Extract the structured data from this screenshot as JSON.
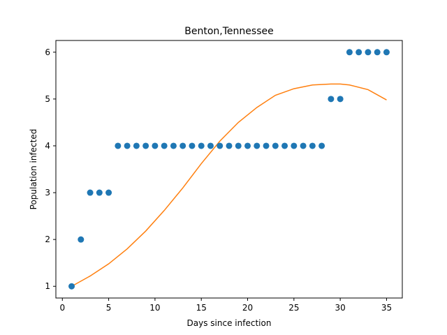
{
  "chart_data": {
    "type": "scatter",
    "title": "Benton,Tennessee",
    "xlabel": "Days since infection",
    "ylabel": "Population infected",
    "xlim": [
      -0.7,
      36.7
    ],
    "ylim": [
      0.75,
      6.25
    ],
    "xticks": [
      0,
      5,
      10,
      15,
      20,
      25,
      30,
      35
    ],
    "yticks": [
      1,
      2,
      3,
      4,
      5,
      6
    ],
    "grid": false,
    "series": [
      {
        "kind": "scatter",
        "color": "#1f77b4",
        "x": [
          1,
          2,
          3,
          4,
          5,
          6,
          7,
          8,
          9,
          10,
          11,
          12,
          13,
          14,
          15,
          16,
          17,
          18,
          19,
          20,
          21,
          22,
          23,
          24,
          25,
          26,
          27,
          28,
          29,
          30,
          31,
          32,
          33,
          34,
          35
        ],
        "y": [
          1,
          2,
          3,
          3,
          3,
          4,
          4,
          4,
          4,
          4,
          4,
          4,
          4,
          4,
          4,
          4,
          4,
          4,
          4,
          4,
          4,
          4,
          4,
          4,
          4,
          4,
          4,
          4,
          5,
          5,
          6,
          6,
          6,
          6,
          6
        ]
      },
      {
        "kind": "line",
        "color": "#ff7f0e",
        "x": [
          1,
          3,
          5,
          7,
          9,
          11,
          13,
          15,
          17,
          19,
          21,
          23,
          25,
          27,
          29,
          30,
          31,
          33,
          35
        ],
        "y": [
          1.0,
          1.22,
          1.48,
          1.8,
          2.18,
          2.62,
          3.1,
          3.62,
          4.1,
          4.5,
          4.82,
          5.08,
          5.22,
          5.3,
          5.32,
          5.32,
          5.3,
          5.2,
          4.98
        ]
      }
    ]
  }
}
